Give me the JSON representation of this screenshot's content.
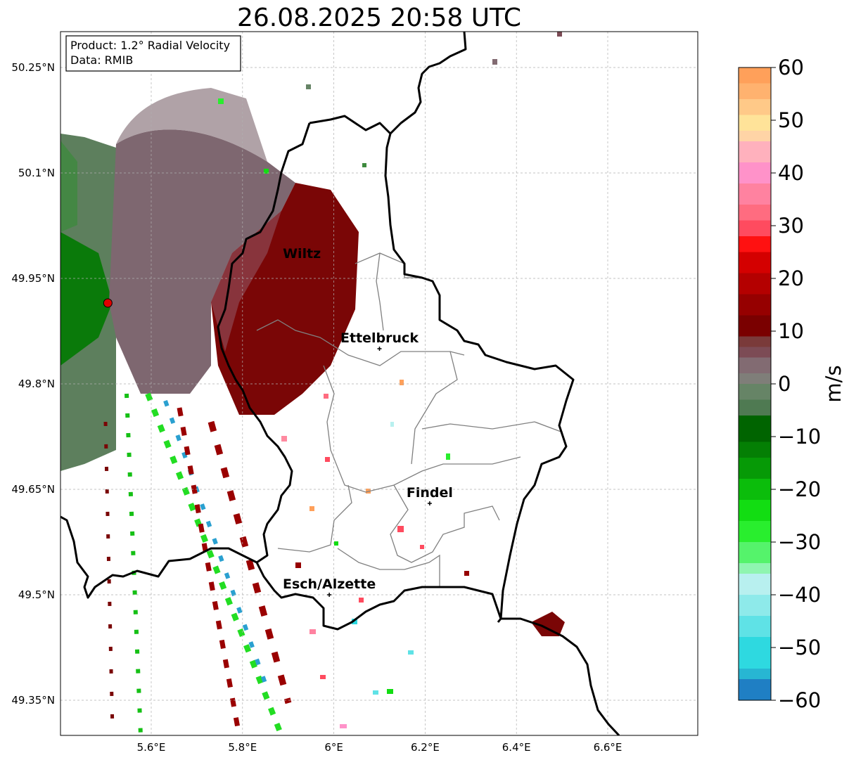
{
  "title": "26.08.2025 20:58 UTC",
  "info": {
    "product": "Product: 1.2° Radial Velocity",
    "data": "Data: RMIB"
  },
  "axes": {
    "lon_ticks": [
      {
        "value": 5.6,
        "label": "5.6°E"
      },
      {
        "value": 5.8,
        "label": "5.8°E"
      },
      {
        "value": 6.0,
        "label": "6°E"
      },
      {
        "value": 6.2,
        "label": "6.2°E"
      },
      {
        "value": 6.4,
        "label": "6.4°E"
      },
      {
        "value": 6.6,
        "label": "6.6°E"
      }
    ],
    "lat_ticks": [
      {
        "value": 50.25,
        "label": "50.25°N"
      },
      {
        "value": 50.1,
        "label": "50.1°N"
      },
      {
        "value": 49.95,
        "label": "49.95°N"
      },
      {
        "value": 49.8,
        "label": "49.8°N"
      },
      {
        "value": 49.65,
        "label": "49.65°N"
      },
      {
        "value": 49.5,
        "label": "49.5°N"
      },
      {
        "value": 49.35,
        "label": "49.35°N"
      }
    ],
    "lon_range": [
      5.4,
      6.8
    ],
    "lat_range": [
      49.3,
      50.3
    ],
    "grid": true
  },
  "colorbar": {
    "label": "m/s",
    "min": -60,
    "max": 60,
    "ticks": [
      {
        "value": 60,
        "label": "60"
      },
      {
        "value": 50,
        "label": "50"
      },
      {
        "value": 40,
        "label": "40"
      },
      {
        "value": 30,
        "label": "30"
      },
      {
        "value": 20,
        "label": "20"
      },
      {
        "value": 10,
        "label": "10"
      },
      {
        "value": 0,
        "label": "0"
      },
      {
        "value": -10,
        "label": "−10"
      },
      {
        "value": -20,
        "label": "−20"
      },
      {
        "value": -30,
        "label": "−30"
      },
      {
        "value": -40,
        "label": "−40"
      },
      {
        "value": -50,
        "label": "−50"
      },
      {
        "value": -60,
        "label": "−60"
      }
    ],
    "bands": [
      {
        "from": -60,
        "to": -56,
        "color": "#1f7fc4"
      },
      {
        "from": -56,
        "to": -54,
        "color": "#27b6d3"
      },
      {
        "from": -54,
        "to": -48,
        "color": "#2ed9e0"
      },
      {
        "from": -48,
        "to": -44,
        "color": "#5fe2e6"
      },
      {
        "from": -44,
        "to": -40,
        "color": "#8eeaea"
      },
      {
        "from": -40,
        "to": -36,
        "color": "#b8f0ef"
      },
      {
        "from": -36,
        "to": -34,
        "color": "#8ff5b0"
      },
      {
        "from": -34,
        "to": -30,
        "color": "#55f36b"
      },
      {
        "from": -30,
        "to": -26,
        "color": "#29ee2e"
      },
      {
        "from": -26,
        "to": -22,
        "color": "#12dd12"
      },
      {
        "from": -22,
        "to": -18,
        "color": "#0bbd0b"
      },
      {
        "from": -18,
        "to": -14,
        "color": "#069a06"
      },
      {
        "from": -14,
        "to": -11,
        "color": "#047f04"
      },
      {
        "from": -11,
        "to": -6,
        "color": "#006400"
      },
      {
        "from": -6,
        "to": -3,
        "color": "#4f7a52"
      },
      {
        "from": -3,
        "to": 0,
        "color": "#668466"
      },
      {
        "from": 0,
        "to": 2,
        "color": "#7f7e79"
      },
      {
        "from": 2,
        "to": 5,
        "color": "#826b72"
      },
      {
        "from": 5,
        "to": 7,
        "color": "#7c4b55"
      },
      {
        "from": 7,
        "to": 9,
        "color": "#7a3a3a"
      },
      {
        "from": 9,
        "to": 13,
        "color": "#7a0000"
      },
      {
        "from": 13,
        "to": 17,
        "color": "#960000"
      },
      {
        "from": 17,
        "to": 21,
        "color": "#b40000"
      },
      {
        "from": 21,
        "to": 25,
        "color": "#d40000"
      },
      {
        "from": 25,
        "to": 28,
        "color": "#ff1111"
      },
      {
        "from": 28,
        "to": 31,
        "color": "#ff4b5f"
      },
      {
        "from": 31,
        "to": 34,
        "color": "#ff6c80"
      },
      {
        "from": 34,
        "to": 38,
        "color": "#ff82a0"
      },
      {
        "from": 38,
        "to": 42,
        "color": "#ff92c9"
      },
      {
        "from": 42,
        "to": 46,
        "color": "#ffb1bd"
      },
      {
        "from": 46,
        "to": 48,
        "color": "#ffd4a6"
      },
      {
        "from": 48,
        "to": 51,
        "color": "#ffe399"
      },
      {
        "from": 51,
        "to": 54,
        "color": "#ffc988"
      },
      {
        "from": 54,
        "to": 57,
        "color": "#ffb26f"
      },
      {
        "from": 57,
        "to": 60,
        "color": "#ffa05a"
      }
    ]
  },
  "radar": {
    "lon": 5.505,
    "lat": 49.915,
    "color": "#e00000"
  },
  "cities": [
    {
      "name": "Wiltz",
      "lon": 5.93,
      "lat": 49.97,
      "marker": false
    },
    {
      "name": "Ettelbruck",
      "lon": 6.1,
      "lat": 49.85,
      "marker": true
    },
    {
      "name": "Findel",
      "lon": 6.21,
      "lat": 49.63,
      "marker": true
    },
    {
      "name": "Esch/Alzette",
      "lon": 5.99,
      "lat": 49.5,
      "marker": true
    }
  ],
  "colors": {
    "border": "#000000",
    "canton_lines": "#808080",
    "grid": "#b0b0b0"
  }
}
